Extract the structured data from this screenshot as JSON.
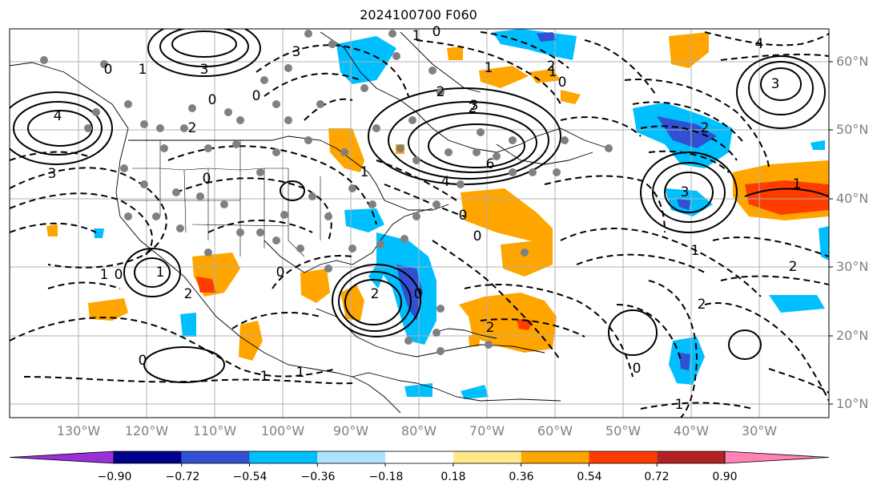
{
  "title": "2024100700 F060",
  "latitude_labels": [
    "60°N",
    "50°N",
    "40°N",
    "30°N",
    "20°N",
    "10°N"
  ],
  "longitude_labels": [
    "130°W",
    "120°W",
    "110°W",
    "100°W",
    "90°W",
    "80°W",
    "70°W",
    "60°W",
    "50°W",
    "40°W",
    "30°W"
  ],
  "colorbar": {
    "ticks": [
      "−0.90",
      "−0.72",
      "−0.54",
      "−0.36",
      "−0.18",
      "0.18",
      "0.36",
      "0.54",
      "0.72",
      "0.90"
    ],
    "colors": [
      "#9b30d8",
      "#00008b",
      "#3150d2",
      "#00bfff",
      "#b0e2ff",
      "#ffffff",
      "#ffe88a",
      "#ffa500",
      "#ff3c00",
      "#b22222",
      "#ff82b4"
    ]
  },
  "contour_labels": [
    "0",
    "3",
    "3",
    "0",
    "4",
    "3",
    "1",
    "1",
    "0",
    "2",
    "4",
    "3",
    "6",
    "4",
    "2",
    "0",
    "2",
    "0",
    "3",
    "1",
    "2",
    "2",
    "1",
    "1",
    "0",
    "1",
    "2",
    "0",
    "1",
    "0",
    "2",
    "3",
    "1",
    "0",
    "1",
    "2",
    "2",
    "0",
    "1",
    "1",
    "0",
    "0",
    "2",
    "1",
    "0"
  ]
}
